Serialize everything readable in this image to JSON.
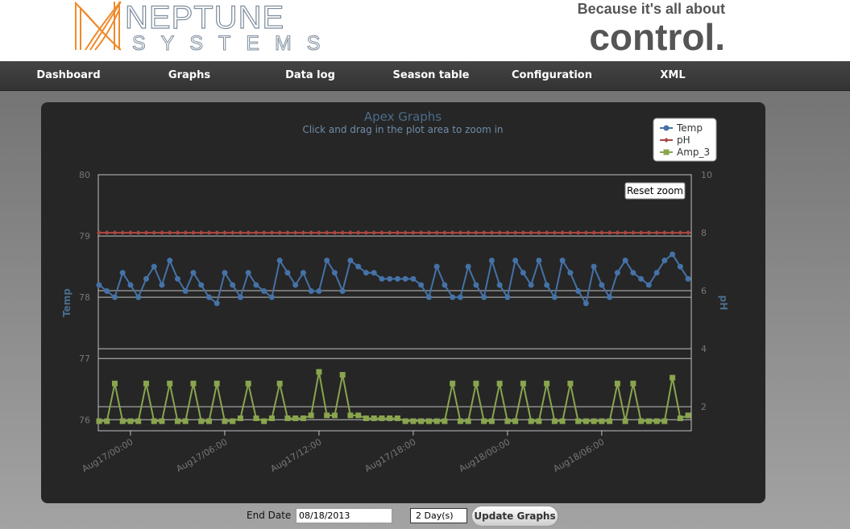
{
  "header": {
    "brand": "NEPTUNE",
    "brand_sub": "SYSTEMS",
    "tagline": "Because it's all about",
    "tagline_big": "control."
  },
  "nav": [
    "Dashboard",
    "Graphs",
    "Data log",
    "Season table",
    "Configuration",
    "XML"
  ],
  "chart_data": {
    "type": "line",
    "title": "Apex Graphs",
    "subtitle": "Click and drag in the plot area to zoom in",
    "y_label": "Temp",
    "y2_label": "pH",
    "reset_zoom": "Reset zoom",
    "grid": true,
    "legend": "top-right",
    "x": [
      "Aug16/22:00",
      "Aug16/22:30",
      "Aug16/23:00",
      "Aug16/23:30",
      "Aug17/00:00",
      "Aug17/00:30",
      "Aug17/01:00",
      "Aug17/01:30",
      "Aug17/02:00",
      "Aug17/02:30",
      "Aug17/03:00",
      "Aug17/03:30",
      "Aug17/04:00",
      "Aug17/04:30",
      "Aug17/05:00",
      "Aug17/05:30",
      "Aug17/06:00",
      "Aug17/06:30",
      "Aug17/07:00",
      "Aug17/07:30",
      "Aug17/08:00",
      "Aug17/08:30",
      "Aug17/09:00",
      "Aug17/09:30",
      "Aug17/10:00",
      "Aug17/10:30",
      "Aug17/11:00",
      "Aug17/11:30",
      "Aug17/12:00",
      "Aug17/12:30",
      "Aug17/13:00",
      "Aug17/13:30",
      "Aug17/14:00",
      "Aug17/14:30",
      "Aug17/15:00",
      "Aug17/15:30",
      "Aug17/16:00",
      "Aug17/16:30",
      "Aug17/17:00",
      "Aug17/17:30",
      "Aug17/18:00",
      "Aug17/18:30",
      "Aug17/19:00",
      "Aug17/19:30",
      "Aug17/20:00",
      "Aug17/20:30",
      "Aug17/21:00",
      "Aug17/21:30",
      "Aug17/22:00",
      "Aug17/22:30",
      "Aug17/23:00",
      "Aug17/23:30",
      "Aug18/00:00",
      "Aug18/00:30",
      "Aug18/01:00",
      "Aug18/01:30",
      "Aug18/02:00",
      "Aug18/02:30",
      "Aug18/03:00",
      "Aug18/03:30",
      "Aug18/04:00",
      "Aug18/04:30",
      "Aug18/05:00",
      "Aug18/05:30",
      "Aug18/06:00",
      "Aug18/06:30",
      "Aug18/07:00",
      "Aug18/07:30",
      "Aug18/08:00",
      "Aug18/08:30",
      "Aug18/09:00",
      "Aug18/09:30",
      "Aug18/10:00",
      "Aug18/10:30",
      "Aug18/11:00",
      "Aug18/11:30"
    ],
    "xlim": [
      "Aug16/21:57",
      "Aug18/11:42"
    ],
    "xticks": [
      "Aug17/00:00",
      "Aug17/06:00",
      "Aug17/12:00",
      "Aug17/18:00",
      "Aug18/00:00",
      "Aug18/06:00"
    ],
    "ylim": [
      75.82,
      80
    ],
    "yticks": [
      76,
      77,
      78,
      79,
      80
    ],
    "y2lim": [
      1.17,
      10
    ],
    "y2ticks": [
      2,
      4,
      6,
      8,
      10
    ],
    "series": [
      {
        "name": "Temp",
        "color": "#4572A7",
        "marker": "circle",
        "values": [
          78.2,
          78.1,
          78.0,
          78.4,
          78.2,
          78.0,
          78.3,
          78.5,
          78.2,
          78.6,
          78.3,
          78.1,
          78.4,
          78.2,
          78.0,
          77.9,
          78.4,
          78.2,
          78.0,
          78.4,
          78.2,
          78.1,
          78.0,
          78.6,
          78.4,
          78.2,
          78.4,
          78.1,
          78.1,
          78.6,
          78.4,
          78.1,
          78.6,
          78.5,
          78.4,
          78.4,
          78.3,
          78.3,
          78.3,
          78.3,
          78.3,
          78.2,
          78.0,
          78.5,
          78.2,
          78.0,
          78.0,
          78.5,
          78.2,
          78.0,
          78.6,
          78.2,
          78.0,
          78.6,
          78.4,
          78.2,
          78.6,
          78.2,
          78.0,
          78.6,
          78.4,
          78.1,
          77.9,
          78.5,
          78.2,
          78.0,
          78.4,
          78.6,
          78.4,
          78.3,
          78.2,
          78.4,
          78.6,
          78.7,
          78.5,
          78.3
        ]
      },
      {
        "name": "pH",
        "color": "#AA4643",
        "marker": "diamond",
        "axis": "y2",
        "values": [
          8,
          8,
          8,
          8,
          8,
          8,
          8,
          8,
          8,
          8,
          8,
          8,
          8,
          8,
          8,
          8,
          8,
          8,
          8,
          8,
          8,
          8,
          8,
          8,
          8,
          8,
          8,
          8,
          8,
          8,
          8,
          8,
          8,
          8,
          8,
          8,
          8,
          8,
          8,
          8,
          8,
          8,
          8,
          8,
          8,
          8,
          8,
          8,
          8,
          8,
          8,
          8,
          8,
          8,
          8,
          8,
          8,
          8,
          8,
          8,
          8,
          8,
          8,
          8,
          8,
          8,
          8,
          8,
          8,
          8,
          8,
          8,
          8,
          8,
          8,
          8
        ]
      },
      {
        "name": "Amp_3",
        "color": "#89A54E",
        "marker": "square",
        "axis": "y2",
        "values": [
          1.5,
          1.5,
          2.8,
          1.5,
          1.5,
          1.5,
          2.8,
          1.5,
          1.5,
          2.8,
          1.5,
          1.5,
          2.8,
          1.5,
          1.5,
          2.8,
          1.5,
          1.5,
          1.6,
          2.8,
          1.6,
          1.5,
          1.6,
          2.8,
          1.6,
          1.6,
          1.6,
          1.7,
          3.2,
          1.7,
          1.7,
          3.1,
          1.7,
          1.7,
          1.6,
          1.6,
          1.6,
          1.6,
          1.6,
          1.5,
          1.5,
          1.5,
          1.5,
          1.5,
          1.5,
          2.8,
          1.5,
          1.5,
          2.8,
          1.5,
          1.5,
          2.8,
          1.5,
          1.5,
          2.8,
          1.5,
          1.5,
          2.8,
          1.5,
          1.5,
          2.8,
          1.5,
          1.5,
          1.5,
          1.5,
          1.5,
          2.8,
          1.5,
          2.8,
          1.5,
          1.5,
          1.5,
          1.5,
          3.0,
          1.6,
          1.7
        ]
      }
    ]
  },
  "form": {
    "end_date_label": "End Date",
    "end_date_value": "08/18/2013",
    "range": "2 Day(s)",
    "submit": "Update Graphs"
  }
}
